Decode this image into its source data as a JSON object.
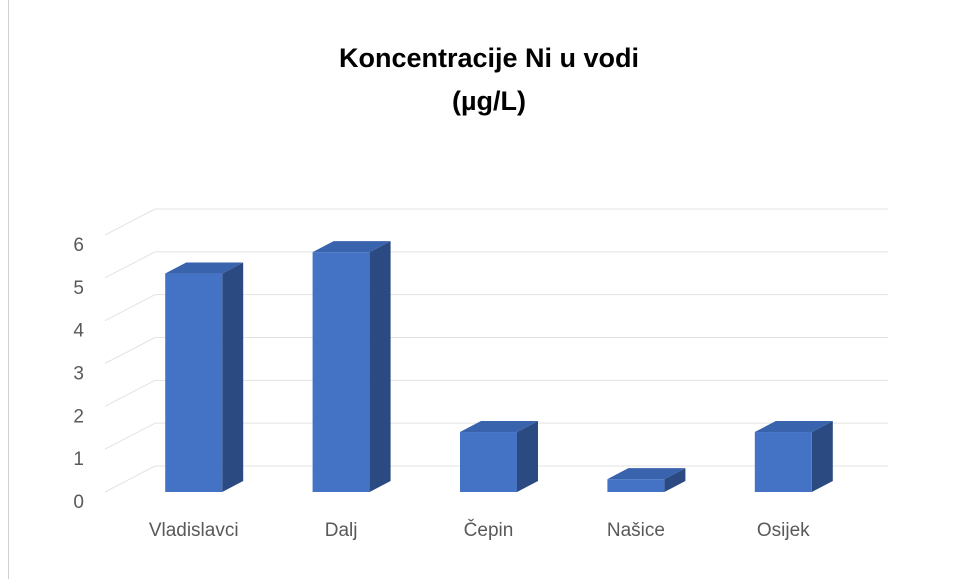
{
  "chart_data": {
    "type": "bar",
    "title": [
      "Koncentracije Ni u vodi",
      "(µg/L)"
    ],
    "categories": [
      "Vladislavci",
      "Dalj",
      "Čepin",
      "Našice",
      "Osijek"
    ],
    "values": [
      5.1,
      5.6,
      1.4,
      0.3,
      1.4
    ],
    "color": "#4472c4",
    "ylim": [
      0,
      6
    ],
    "yticks": [
      0,
      1,
      2,
      3,
      4,
      5,
      6
    ],
    "grid": true
  }
}
